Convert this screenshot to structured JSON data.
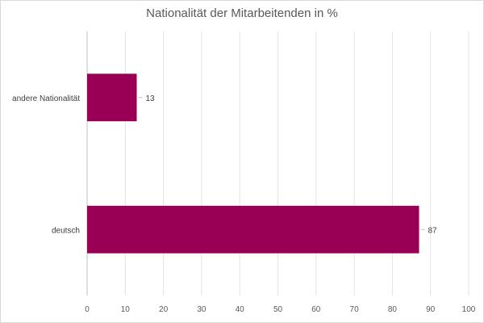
{
  "chart_data": {
    "type": "bar",
    "orientation": "horizontal",
    "title": "Nationalität der Mitarbeitenden in %",
    "categories": [
      "andere Nationalität",
      "deutsch"
    ],
    "values": [
      13,
      87
    ],
    "data_labels": [
      "13",
      "87"
    ],
    "xlim": [
      0,
      100
    ],
    "x_ticks": [
      0,
      10,
      20,
      30,
      40,
      50,
      60,
      70,
      80,
      90,
      100
    ],
    "xlabel": "",
    "ylabel": "",
    "grid": "vertical",
    "legend": "none",
    "bar_color": "#990055"
  }
}
